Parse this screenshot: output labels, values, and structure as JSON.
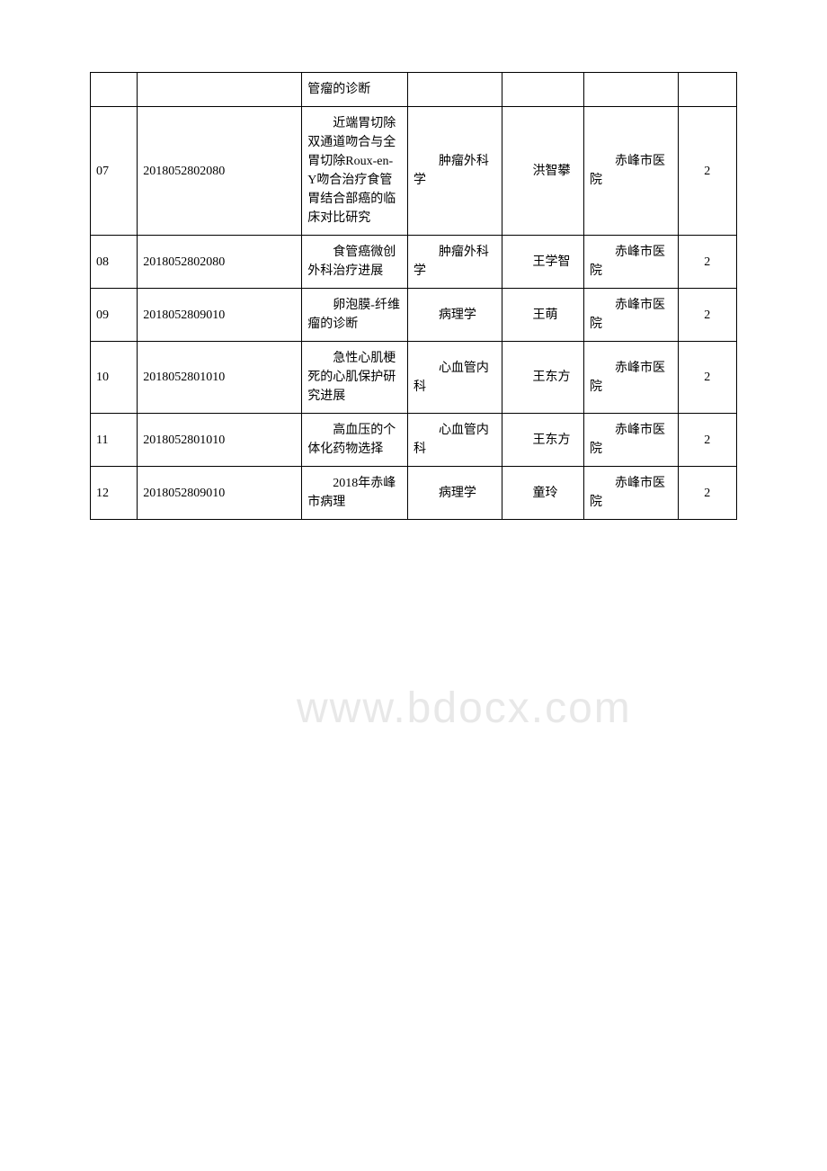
{
  "watermark": "www.bdocx.com",
  "rows": [
    {
      "seq": "",
      "code": "",
      "title": "管瘤的诊断",
      "dept": "",
      "name": "",
      "hospital": "",
      "num": ""
    },
    {
      "seq": "07",
      "code": "2018052802080",
      "title": "近端胃切除双通道吻合与全胃切除Roux-en-Y吻合治疗食管胃结合部癌的临床对比研究",
      "dept": "肿瘤外科学",
      "name": "洪智攀",
      "hospital": "赤峰市医院",
      "num": "2"
    },
    {
      "seq": "08",
      "code": "2018052802080",
      "title": "食管癌微创外科治疗进展",
      "dept": "肿瘤外科学",
      "name": "王学智",
      "hospital": "赤峰市医院",
      "num": "2"
    },
    {
      "seq": "09",
      "code": "2018052809010",
      "title": "卵泡膜-纤维瘤的诊断",
      "dept": "病理学",
      "name": "王萌",
      "hospital": "赤峰市医院",
      "num": "2"
    },
    {
      "seq": "10",
      "code": "2018052801010",
      "title": "急性心肌梗死的心肌保护研究进展",
      "dept": "心血管内科",
      "name": "王东方",
      "hospital": "赤峰市医院",
      "num": "2"
    },
    {
      "seq": "11",
      "code": "2018052801010",
      "title": "高血压的个体化药物选择",
      "dept": "心血管内科",
      "name": "王东方",
      "hospital": "赤峰市医院",
      "num": "2"
    },
    {
      "seq": "12",
      "code": "2018052809010",
      "title": "2018年赤峰市病理",
      "dept": "病理学",
      "name": "童玲",
      "hospital": "赤峰市医院",
      "num": "2"
    }
  ]
}
